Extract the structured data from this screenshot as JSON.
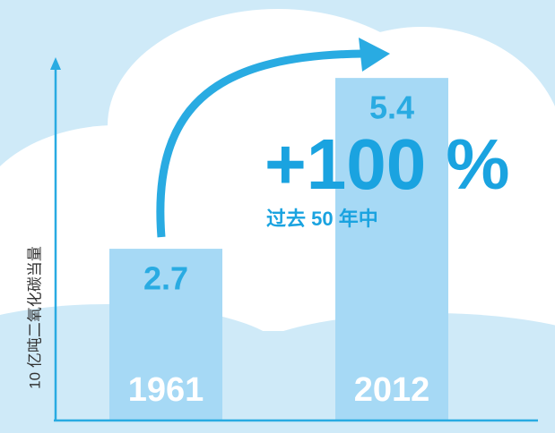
{
  "chart_data": {
    "type": "bar",
    "y_label": "10 亿吨二氧化碳当量",
    "categories": [
      "1961",
      "2012"
    ],
    "values": [
      2.7,
      5.4
    ],
    "color": "#a6d9f5",
    "ylim": [
      0,
      5.6
    ],
    "annotations": [
      "+100 %",
      "过去 50 年中"
    ]
  }
}
